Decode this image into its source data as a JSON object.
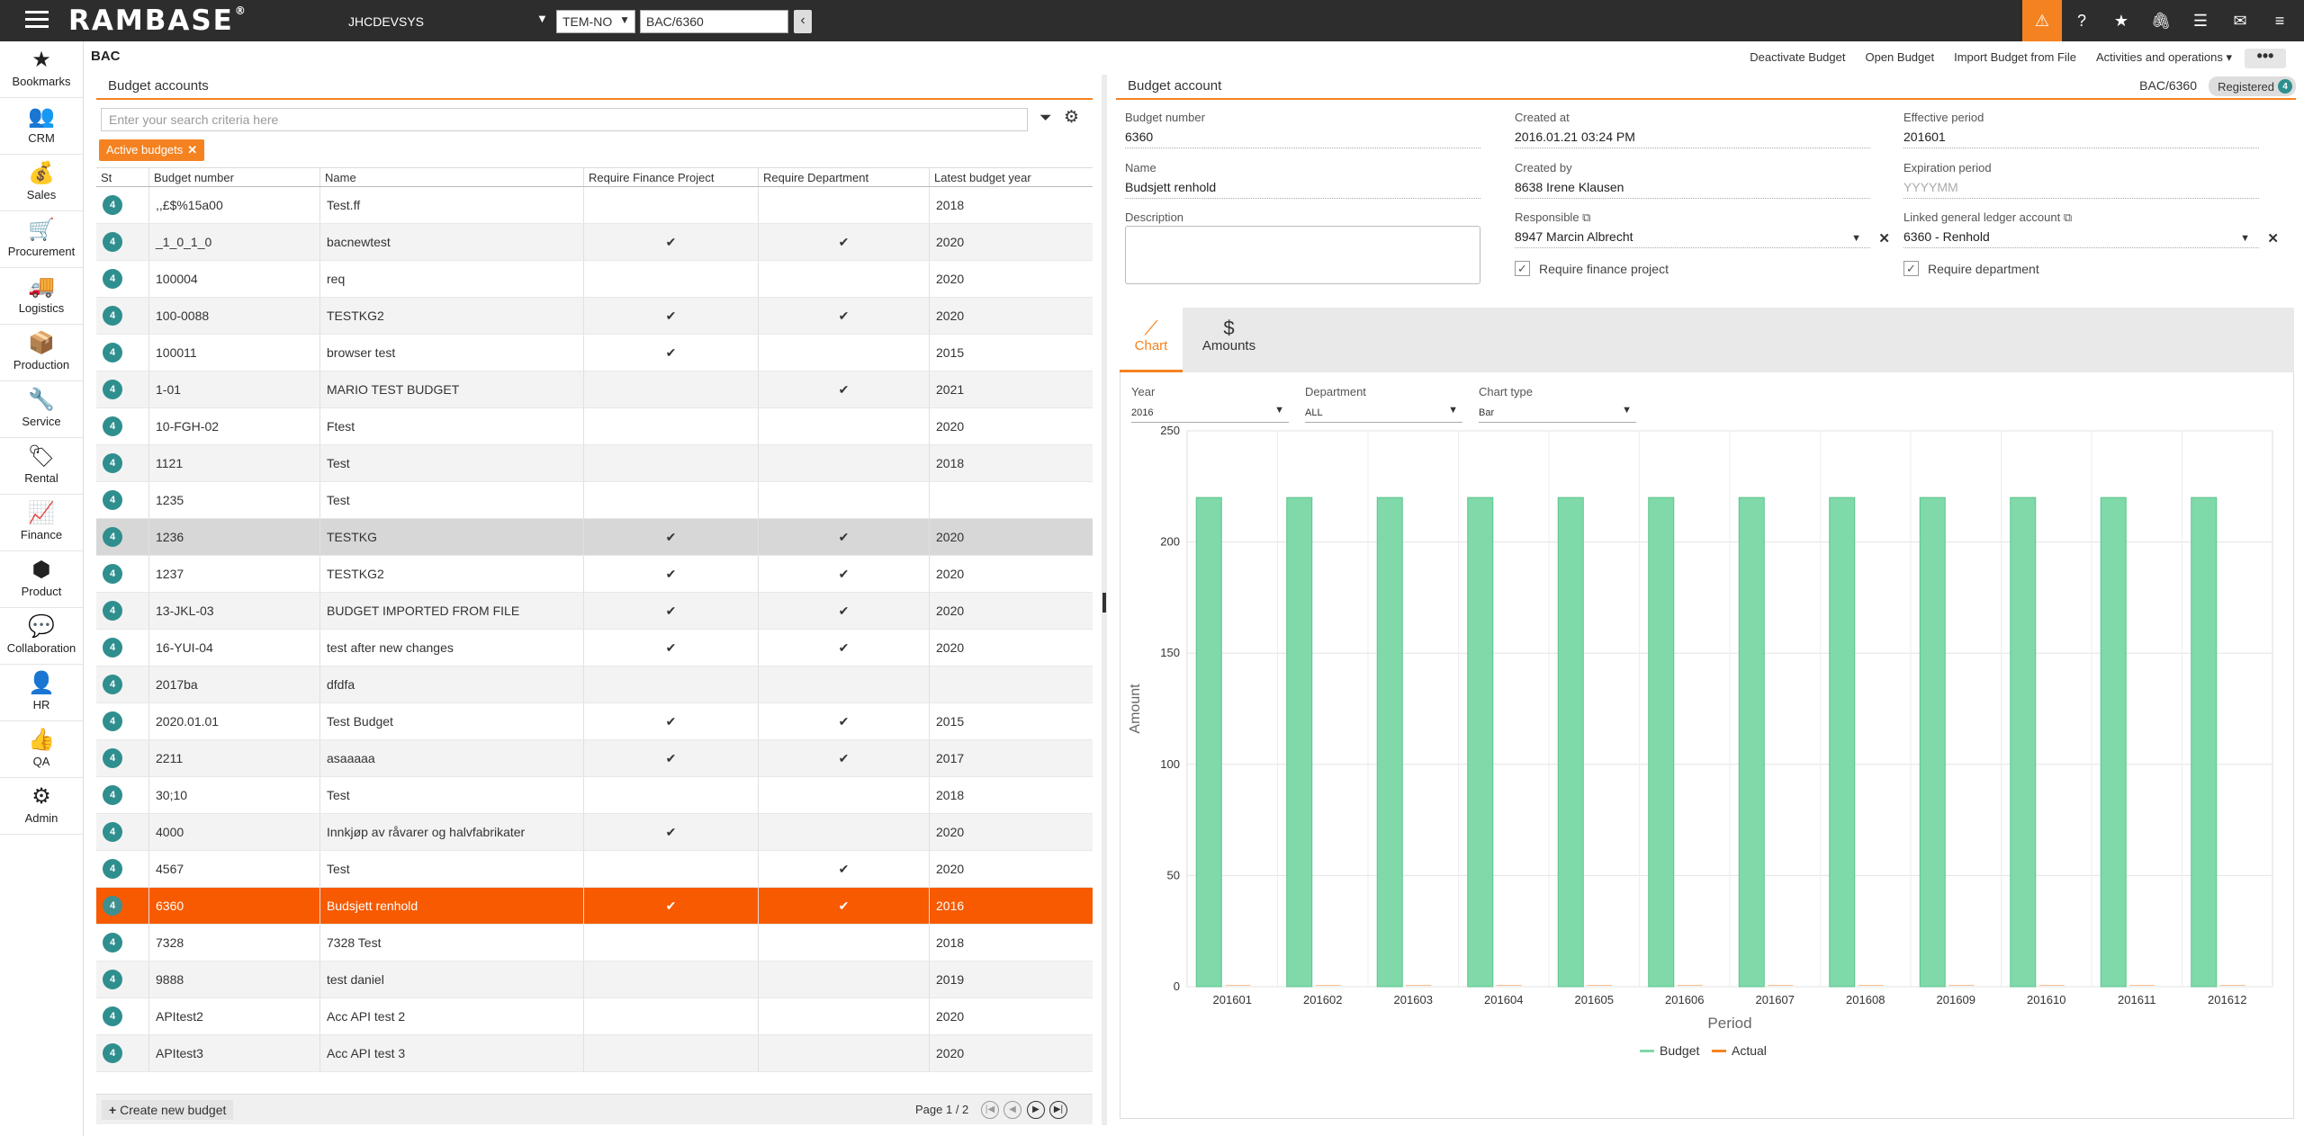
{
  "topbar": {
    "logo": "RAMBASE",
    "logo_mark": "®",
    "system": "JHCDEVSYS",
    "company": "TEM-NO",
    "goto_value": "BAC/6360",
    "back_glyph": "‹"
  },
  "sidebar": [
    "Bookmarks",
    "CRM",
    "Sales",
    "Procurement",
    "Logistics",
    "Production",
    "Service",
    "Rental",
    "Finance",
    "Product",
    "Collaboration",
    "HR",
    "QA",
    "Admin"
  ],
  "page": {
    "title": "BAC",
    "actions": [
      "Deactivate Budget",
      "Open Budget",
      "Import Budget from File",
      "Activities and operations ▾"
    ],
    "more": "•••"
  },
  "left": {
    "title": "Budget accounts",
    "search_placeholder": "Enter your search criteria here",
    "chip": "Active budgets",
    "chip_x": "✕",
    "columns": [
      "St",
      "Budget number",
      "Name",
      "Require Finance Project",
      "Require Department",
      "Latest budget year"
    ],
    "rows": [
      {
        "st": "4",
        "num": ",,£$%15a00",
        "name": "Test.ff",
        "fp": "",
        "dep": "",
        "year": "2018"
      },
      {
        "st": "4",
        "num": "_1_0_1_0",
        "name": "bacnewtest",
        "fp": "✔",
        "dep": "✔",
        "year": "2020"
      },
      {
        "st": "4",
        "num": "100004",
        "name": "req",
        "fp": "",
        "dep": "",
        "year": "2020"
      },
      {
        "st": "4",
        "num": "100-0088",
        "name": "TESTKG2",
        "fp": "✔",
        "dep": "✔",
        "year": "2020"
      },
      {
        "st": "4",
        "num": "100011",
        "name": "browser test",
        "fp": "✔",
        "dep": "",
        "year": "2015"
      },
      {
        "st": "4",
        "num": "1-01",
        "name": "MARIO TEST BUDGET",
        "fp": "",
        "dep": "✔",
        "year": "2021"
      },
      {
        "st": "4",
        "num": "10-FGH-02",
        "name": "Ftest",
        "fp": "",
        "dep": "",
        "year": "2020"
      },
      {
        "st": "4",
        "num": "1121",
        "name": "Test",
        "fp": "",
        "dep": "",
        "year": "2018"
      },
      {
        "st": "4",
        "num": "1235",
        "name": "Test",
        "fp": "",
        "dep": "",
        "year": ""
      },
      {
        "st": "4",
        "num": "1236",
        "name": "TESTKG",
        "fp": "✔",
        "dep": "✔",
        "year": "2020"
      },
      {
        "st": "4",
        "num": "1237",
        "name": "TESTKG2",
        "fp": "✔",
        "dep": "✔",
        "year": "2020"
      },
      {
        "st": "4",
        "num": "13-JKL-03",
        "name": "BUDGET IMPORTED FROM FILE",
        "fp": "✔",
        "dep": "✔",
        "year": "2020"
      },
      {
        "st": "4",
        "num": "16-YUI-04",
        "name": "test after new changes",
        "fp": "✔",
        "dep": "✔",
        "year": "2020"
      },
      {
        "st": "4",
        "num": "2017ba",
        "name": "dfdfa",
        "fp": "",
        "dep": "",
        "year": ""
      },
      {
        "st": "4",
        "num": "2020.01.01",
        "name": "Test Budget",
        "fp": "✔",
        "dep": "✔",
        "year": "2015"
      },
      {
        "st": "4",
        "num": "2211",
        "name": "asaaaaa",
        "fp": "✔",
        "dep": "✔",
        "year": "2017"
      },
      {
        "st": "4",
        "num": "30;10",
        "name": "Test",
        "fp": "",
        "dep": "",
        "year": "2018"
      },
      {
        "st": "4",
        "num": "4000",
        "name": "Innkjøp av råvarer og halvfabrikater",
        "fp": "✔",
        "dep": "",
        "year": "2020"
      },
      {
        "st": "4",
        "num": "4567",
        "name": "Test",
        "fp": "",
        "dep": "✔",
        "year": "2020"
      },
      {
        "st": "4",
        "num": "6360",
        "name": "Budsjett renhold",
        "fp": "✔",
        "dep": "✔",
        "year": "2016"
      },
      {
        "st": "4",
        "num": "7328",
        "name": "7328 Test",
        "fp": "",
        "dep": "",
        "year": "2018"
      },
      {
        "st": "4",
        "num": "9888",
        "name": "test daniel",
        "fp": "",
        "dep": "",
        "year": "2019"
      },
      {
        "st": "4",
        "num": "APItest2",
        "name": "Acc API test 2",
        "fp": "",
        "dep": "",
        "year": "2020"
      },
      {
        "st": "4",
        "num": "APItest3",
        "name": "Acc API test 3",
        "fp": "",
        "dep": "",
        "year": "2020"
      }
    ],
    "create_label": "Create new budget",
    "page_info": "Page 1 / 2",
    "pager": [
      "|◀",
      "◀",
      "▶",
      "▶|"
    ]
  },
  "right": {
    "title": "Budget account",
    "ref": "BAC/6360",
    "status": "Registered",
    "status_no": "4",
    "fields": {
      "budget_number": {
        "label": "Budget number",
        "value": "6360"
      },
      "created_at": {
        "label": "Created at",
        "value": "2016.01.21 03:24 PM"
      },
      "effective": {
        "label": "Effective period",
        "value": "201601"
      },
      "name": {
        "label": "Name",
        "value": "Budsjett renhold"
      },
      "created_by": {
        "label": "Created by",
        "value": "8638 Irene Klausen"
      },
      "expiration": {
        "label": "Expiration period",
        "value": "YYYYMM"
      },
      "description": {
        "label": "Description"
      },
      "responsible": {
        "label": "Responsible",
        "value": "8947 Marcin Albrecht"
      },
      "linked": {
        "label": "Linked general ledger account",
        "value": "6360 - Renhold"
      },
      "req_fp": "Require finance project",
      "req_dep": "Require department"
    },
    "tabs": {
      "chart": "Chart",
      "amounts": "Amounts",
      "amounts_icon": "$"
    },
    "filters": {
      "year": {
        "label": "Year",
        "value": "2016"
      },
      "department": {
        "label": "Department",
        "value": "ALL"
      },
      "chart_type": {
        "label": "Chart type",
        "value": "Bar"
      }
    }
  },
  "chart_data": {
    "type": "bar",
    "categories": [
      "201601",
      "201602",
      "201603",
      "201604",
      "201605",
      "201606",
      "201607",
      "201608",
      "201609",
      "201610",
      "201611",
      "201612"
    ],
    "series": [
      {
        "name": "Budget",
        "values": [
          220,
          220,
          220,
          220,
          220,
          220,
          220,
          220,
          220,
          220,
          220,
          220
        ],
        "color": "#7fd9a8"
      },
      {
        "name": "Actual",
        "values": [
          0,
          0,
          0,
          0,
          0,
          0,
          0,
          0,
          0,
          0,
          0,
          0
        ],
        "color": "#f58220"
      }
    ],
    "xlabel": "Period",
    "ylabel": "Amount",
    "ylim": [
      0,
      250
    ],
    "yticks": [
      0,
      50,
      100,
      150,
      200,
      250
    ],
    "legend": "bottom-center",
    "grid": true
  }
}
